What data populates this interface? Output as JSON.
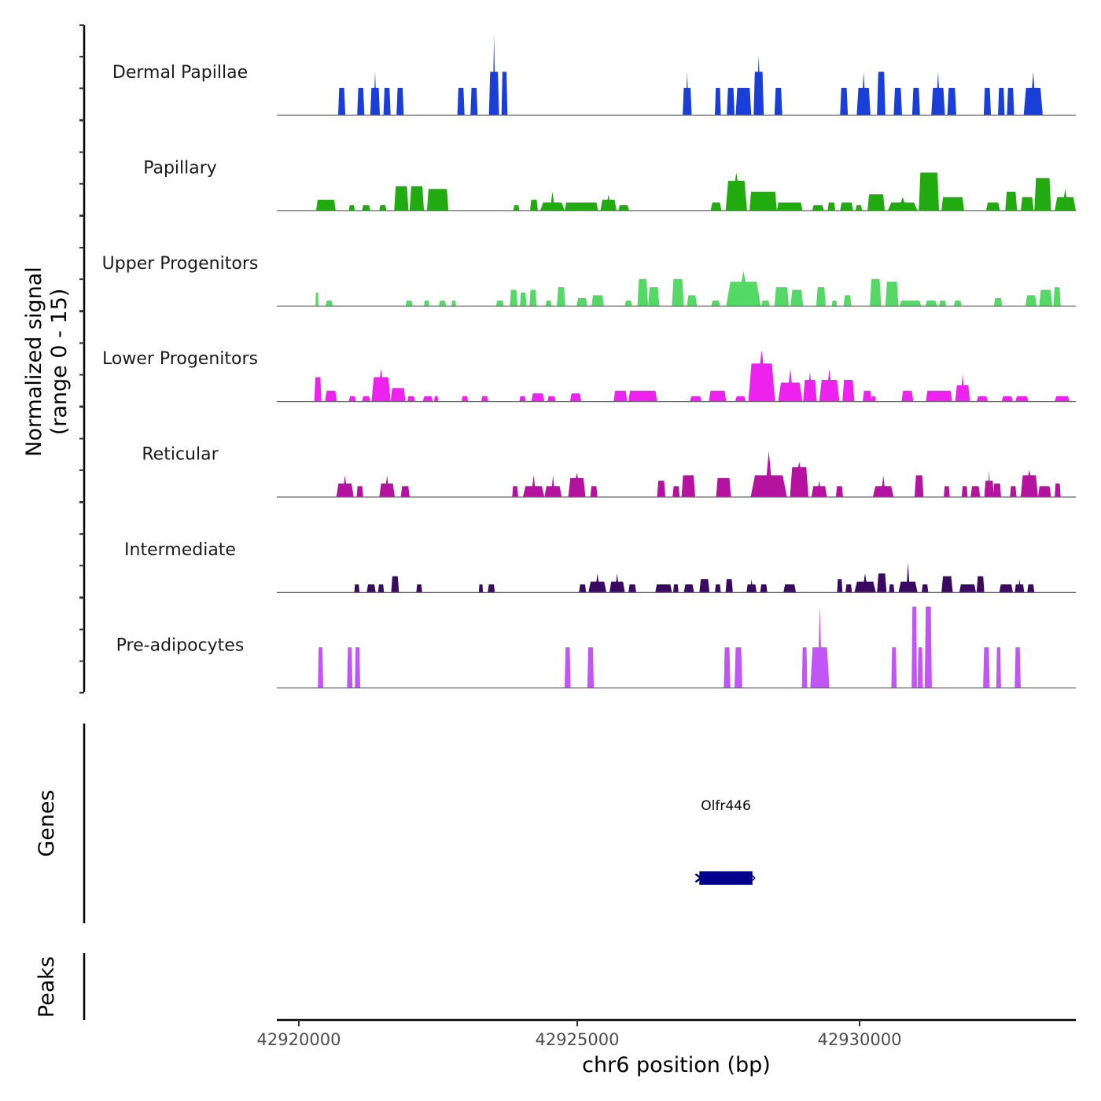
{
  "chart_data": {
    "type": "area",
    "title": "",
    "xlabel": "chr6 position (bp)",
    "ylabel": "Normalized signal\n(range 0 - 15)",
    "ylabel_lines": [
      "Normalized signal",
      "(range 0 - 15)"
    ],
    "xlim": [
      42920170,
      42933580
    ],
    "ylim": [
      0,
      15
    ],
    "x_ticks": [
      42920000,
      42925000,
      42930000
    ],
    "x_tick_labels": [
      "42920000",
      "42925000",
      "42930000"
    ],
    "grid": false,
    "tracks": [
      {
        "name": "Dermal Papillae",
        "color": "#1a3fd9",
        "peaks": [
          [
            42921200,
            42921320,
            5
          ],
          [
            42921520,
            42921640,
            5
          ],
          [
            42921740,
            42921900,
            5,
            8
          ],
          [
            42921960,
            42922080,
            5
          ],
          [
            42922180,
            42922300,
            5
          ],
          [
            42923200,
            42923320,
            5
          ],
          [
            42923420,
            42923540,
            5
          ],
          [
            42923730,
            42923900,
            8,
            15
          ],
          [
            42923940,
            42924040,
            8
          ],
          [
            42926980,
            42927130,
            5,
            8
          ],
          [
            42927520,
            42927620,
            5
          ],
          [
            42927720,
            42927850,
            5
          ],
          [
            42927870,
            42928130,
            5
          ],
          [
            42928170,
            42928340,
            8,
            11
          ],
          [
            42928520,
            42928650,
            5
          ],
          [
            42929620,
            42929750,
            5
          ],
          [
            42929900,
            42930130,
            5,
            8
          ],
          [
            42930240,
            42930380,
            8
          ],
          [
            42930520,
            42930660,
            5
          ],
          [
            42930830,
            42930960,
            5
          ],
          [
            42931150,
            42931380,
            5,
            8
          ],
          [
            42931420,
            42931570,
            5
          ],
          [
            42932030,
            42932150,
            5
          ],
          [
            42932270,
            42932380,
            5
          ],
          [
            42932420,
            42932540,
            5
          ],
          [
            42932700,
            42933020,
            5,
            8
          ],
          [
            42933730,
            42933870,
            5,
            8
          ]
        ]
      },
      {
        "name": "Papillary",
        "color": "#22aa11",
        "peaks": [
          [
            42920830,
            42921160,
            2
          ],
          [
            42921380,
            42921480,
            1
          ],
          [
            42921600,
            42921740,
            1
          ],
          [
            42921890,
            42922010,
            1
          ],
          [
            42922140,
            42922380,
            4.5
          ],
          [
            42922400,
            42922640,
            4.5
          ],
          [
            42922690,
            42923050,
            4
          ],
          [
            42924140,
            42924240,
            1
          ],
          [
            42924420,
            42924550,
            2
          ],
          [
            42924590,
            42925000,
            1.5,
            3.5
          ],
          [
            42925000,
            42925560,
            1.5
          ],
          [
            42925600,
            42925870,
            2,
            3
          ],
          [
            42925900,
            42926080,
            1
          ],
          [
            42927450,
            42927630,
            1.5
          ],
          [
            42927700,
            42928060,
            5.5,
            7
          ],
          [
            42928100,
            42928560,
            3.5
          ],
          [
            42928560,
            42928990,
            1.5
          ],
          [
            42929150,
            42929350,
            1
          ],
          [
            42929410,
            42929540,
            1.5
          ],
          [
            42929620,
            42929840,
            1.5
          ],
          [
            42929880,
            42929990,
            1
          ],
          [
            42930080,
            42930370,
            3
          ],
          [
            42930420,
            42930920,
            1.5,
            2.5
          ],
          [
            42930940,
            42931280,
            7
          ],
          [
            42931320,
            42931700,
            2.5
          ],
          [
            42932070,
            42932300,
            1.5
          ],
          [
            42932390,
            42932590,
            3.5
          ],
          [
            42932650,
            42932870,
            2.5
          ],
          [
            42932880,
            42933160,
            6
          ],
          [
            42933220,
            42933670,
            2.5,
            4
          ]
        ]
      },
      {
        "name": "Upper Progenitors",
        "color": "#55d966",
        "peaks": [
          [
            42920820,
            42920870,
            2.5
          ],
          [
            42920990,
            42921110,
            1
          ],
          [
            42922330,
            42922450,
            1
          ],
          [
            42922640,
            42922730,
            1
          ],
          [
            42922890,
            42923010,
            1
          ],
          [
            42923100,
            42923180,
            1
          ],
          [
            42923850,
            42923980,
            1
          ],
          [
            42924080,
            42924210,
            3
          ],
          [
            42924250,
            42924360,
            2.5
          ],
          [
            42924410,
            42924530,
            3
          ],
          [
            42924680,
            42924780,
            1
          ],
          [
            42924870,
            42925010,
            3.5
          ],
          [
            42925200,
            42925380,
            1.5
          ],
          [
            42925450,
            42925660,
            2
          ],
          [
            42926010,
            42926130,
            1
          ],
          [
            42926220,
            42926400,
            5
          ],
          [
            42926400,
            42926590,
            3.5
          ],
          [
            42926800,
            42927000,
            5
          ],
          [
            42927050,
            42927220,
            2
          ],
          [
            42927460,
            42927610,
            1
          ],
          [
            42927710,
            42928290,
            4.5,
            6.5
          ],
          [
            42928300,
            42928440,
            1
          ],
          [
            42928520,
            42928760,
            3.5
          ],
          [
            42928790,
            42929000,
            3
          ],
          [
            42929220,
            42929380,
            3.5
          ],
          [
            42929480,
            42929570,
            1
          ],
          [
            42929680,
            42929810,
            2
          ],
          [
            42930120,
            42930310,
            5
          ],
          [
            42930380,
            42930600,
            4.5
          ],
          [
            42930620,
            42930980,
            1
          ],
          [
            42931050,
            42931250,
            1
          ],
          [
            42931280,
            42931400,
            1
          ],
          [
            42931530,
            42931660,
            1
          ],
          [
            42932200,
            42932340,
            1.5
          ],
          [
            42932730,
            42932920,
            2
          ],
          [
            42932960,
            42933180,
            3
          ],
          [
            42933200,
            42933320,
            3.5
          ]
        ]
      },
      {
        "name": "Lower Progenitors",
        "color": "#ee22ee",
        "peaks": [
          [
            42920800,
            42920920,
            4.5
          ],
          [
            42920980,
            42921180,
            2
          ],
          [
            42921380,
            42921500,
            1
          ],
          [
            42921600,
            42921740,
            1
          ],
          [
            42921760,
            42922080,
            4.5,
            6
          ],
          [
            42922080,
            42922330,
            2.5
          ],
          [
            42922360,
            42922490,
            1
          ],
          [
            42922620,
            42922790,
            1
          ],
          [
            42922810,
            42922880,
            1
          ],
          [
            42923270,
            42923380,
            1
          ],
          [
            42923600,
            42923720,
            1
          ],
          [
            42924240,
            42924350,
            1
          ],
          [
            42924440,
            42924660,
            1.5
          ],
          [
            42924710,
            42924850,
            1
          ],
          [
            42925090,
            42925280,
            1.5
          ],
          [
            42925820,
            42926050,
            2
          ],
          [
            42926070,
            42926550,
            2
          ],
          [
            42927100,
            42927300,
            1
          ],
          [
            42927420,
            42927710,
            2
          ],
          [
            42927860,
            42928040,
            1
          ],
          [
            42928080,
            42928530,
            7,
            9.5
          ],
          [
            42928580,
            42928990,
            3.5,
            6
          ],
          [
            42929000,
            42929230,
            4,
            5.5
          ],
          [
            42929270,
            42929610,
            4,
            6
          ],
          [
            42929660,
            42929860,
            4
          ],
          [
            42930000,
            42930150,
            2
          ],
          [
            42930140,
            42930220,
            1
          ],
          [
            42930650,
            42930850,
            2
          ],
          [
            42931060,
            42931500,
            2
          ],
          [
            42931550,
            42931800,
            3,
            5
          ],
          [
            42931910,
            42932100,
            1
          ],
          [
            42932330,
            42932520,
            1
          ],
          [
            42932560,
            42932780,
            1
          ],
          [
            42933220,
            42933470,
            1
          ],
          [
            42933710,
            42933910,
            1.5,
            2.5
          ],
          [
            42933960,
            42934090,
            1
          ]
        ]
      },
      {
        "name": "Reticular",
        "color": "#b5139f",
        "peaks": [
          [
            42921170,
            42921460,
            2.5,
            4
          ],
          [
            42921510,
            42921620,
            2
          ],
          [
            42921890,
            42922150,
            2.5,
            4
          ],
          [
            42922250,
            42922400,
            2
          ],
          [
            42924120,
            42924220,
            2
          ],
          [
            42924300,
            42924660,
            2,
            4
          ],
          [
            42924660,
            42924950,
            2,
            4
          ],
          [
            42925060,
            42925350,
            3.5,
            4.5
          ],
          [
            42925430,
            42925550,
            2
          ],
          [
            42926550,
            42926690,
            3
          ],
          [
            42926810,
            42926930,
            2
          ],
          [
            42926960,
            42927190,
            4
          ],
          [
            42927540,
            42927790,
            3.5
          ],
          [
            42928120,
            42928730,
            4,
            8.5
          ],
          [
            42928780,
            42929090,
            5.5,
            6.5
          ],
          [
            42929140,
            42929400,
            2,
            3
          ],
          [
            42929550,
            42929670,
            2
          ],
          [
            42930170,
            42930520,
            2,
            4
          ],
          [
            42930870,
            42931020,
            4
          ],
          [
            42931360,
            42931460,
            2
          ],
          [
            42931660,
            42931760,
            2
          ],
          [
            42931810,
            42931970,
            2
          ],
          [
            42932040,
            42932200,
            3,
            5
          ],
          [
            42932190,
            42932320,
            2.5,
            2.5
          ],
          [
            42932470,
            42932580,
            2
          ],
          [
            42932650,
            42932940,
            4,
            5
          ],
          [
            42932940,
            42933160,
            2
          ],
          [
            42933220,
            42933320,
            2.5
          ]
        ]
      },
      {
        "name": "Intermediate",
        "color": "#3a0a63",
        "peaks": [
          [
            42921470,
            42921560,
            1.5
          ],
          [
            42921680,
            42921830,
            1.5
          ],
          [
            42921870,
            42921970,
            1.5
          ],
          [
            42922090,
            42922220,
            3
          ],
          [
            42922510,
            42922610,
            1.5
          ],
          [
            42923560,
            42923630,
            1.5
          ],
          [
            42923710,
            42923830,
            1.5
          ],
          [
            42925240,
            42925360,
            1.5
          ],
          [
            42925400,
            42925700,
            2,
            3.5
          ],
          [
            42925750,
            42926010,
            2,
            3.5
          ],
          [
            42926070,
            42926200,
            1.5
          ],
          [
            42926520,
            42926800,
            1.5
          ],
          [
            42926820,
            42926910,
            1.5
          ],
          [
            42927000,
            42927170,
            1.5
          ],
          [
            42927260,
            42927430,
            2.5
          ],
          [
            42927520,
            42927620,
            1.5
          ],
          [
            42927700,
            42927820,
            2.5
          ],
          [
            42928050,
            42928220,
            1.5,
            2.5
          ],
          [
            42928280,
            42928400,
            1.5
          ],
          [
            42928670,
            42928880,
            1.5
          ],
          [
            42929570,
            42929660,
            2.5
          ],
          [
            42929710,
            42929820,
            1.5
          ],
          [
            42929860,
            42930220,
            2,
            3.5
          ],
          [
            42930240,
            42930400,
            3.5
          ],
          [
            42930440,
            42930530,
            1.5
          ],
          [
            42930600,
            42930920,
            2,
            5.5
          ],
          [
            42930990,
            42931100,
            1.5
          ],
          [
            42931320,
            42931510,
            3
          ],
          [
            42931620,
            42931900,
            1.5
          ],
          [
            42931910,
            42932040,
            3
          ],
          [
            42932290,
            42932520,
            1.5
          ],
          [
            42932550,
            42932710,
            1.5,
            2.5
          ],
          [
            42932760,
            42932880,
            1.5
          ]
        ]
      },
      {
        "name": "Pre-adipocytes",
        "color": "#c155f5",
        "peaks": [
          [
            42920860,
            42920950,
            7.5
          ],
          [
            42921350,
            42921440,
            7.5
          ],
          [
            42921480,
            42921570,
            7.5
          ],
          [
            42925000,
            42925100,
            7.5
          ],
          [
            42925380,
            42925490,
            7.5
          ],
          [
            42927670,
            42927780,
            7.5
          ],
          [
            42927850,
            42927980,
            7.5
          ],
          [
            42928980,
            42929070,
            7.5
          ],
          [
            42929120,
            42929440,
            7.5,
            15
          ],
          [
            42930480,
            42930570,
            7.5
          ],
          [
            42930820,
            42930910,
            15
          ],
          [
            42930920,
            42931010,
            7.5
          ],
          [
            42931040,
            42931160,
            15
          ],
          [
            42932020,
            42932130,
            7.5
          ],
          [
            42932240,
            42932320,
            7.5
          ],
          [
            42932550,
            42932650,
            7.5
          ]
        ]
      }
    ],
    "genes_track": {
      "label": "Genes",
      "genes": [
        {
          "name": "Olfr446",
          "start": 42927260,
          "end": 42928150,
          "strand": "-",
          "color": "#00008b"
        }
      ]
    },
    "peaks_track": {
      "label": "Peaks",
      "peaks": []
    }
  }
}
